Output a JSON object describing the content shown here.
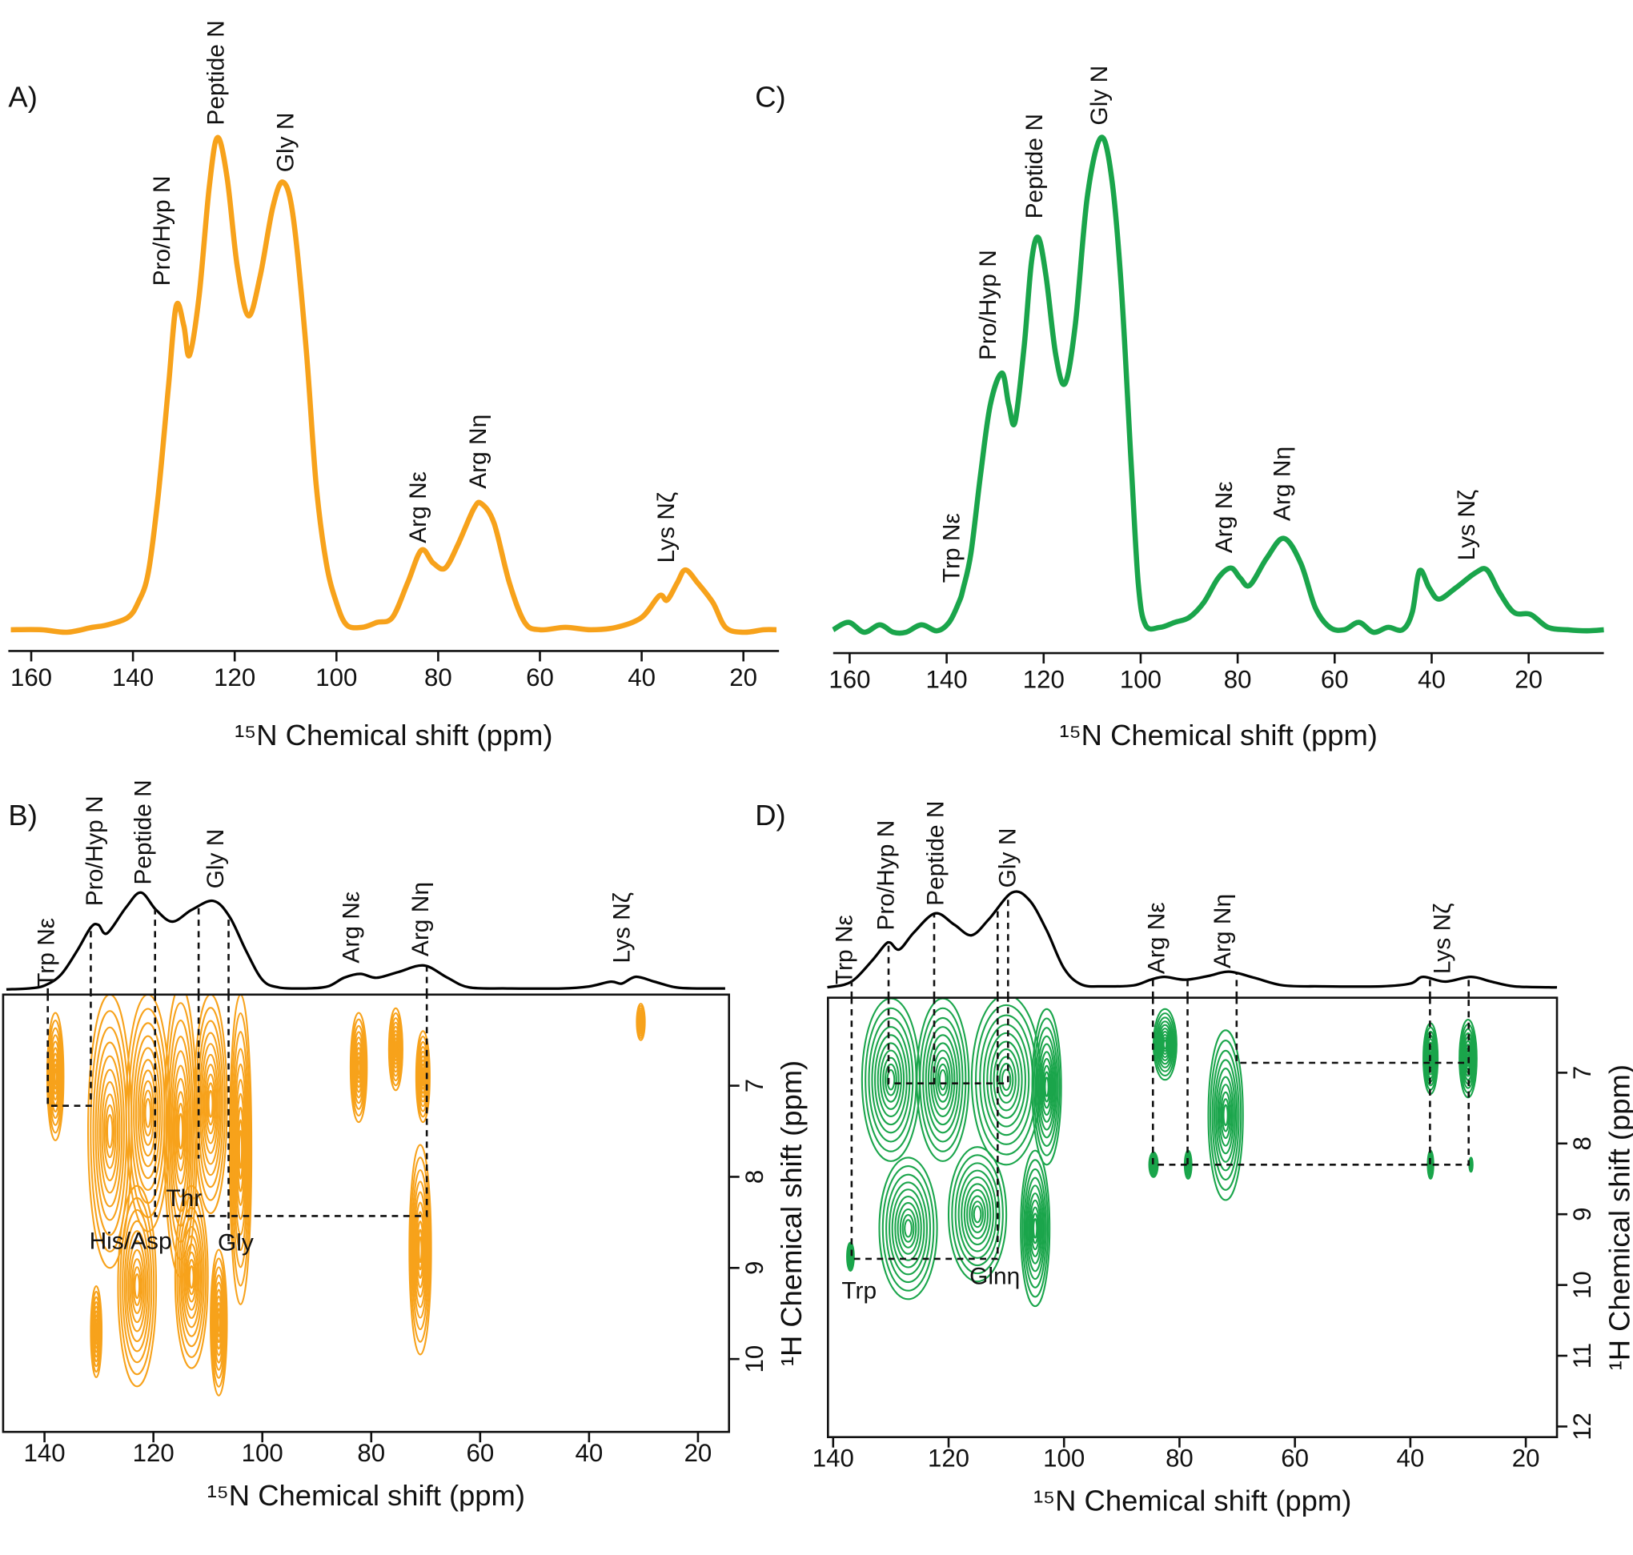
{
  "chart_data": [
    {
      "type": "line",
      "title": "A)",
      "x_label": "¹⁵N Chemical shift (ppm)",
      "xlim": [
        164.5,
        13
      ],
      "xticks": [
        160,
        140,
        120,
        100,
        80,
        60,
        40,
        20
      ],
      "ylim": [
        0,
        100
      ],
      "series": [
        {
          "color": "#f7a21b",
          "x": [
            164,
            158,
            153,
            148,
            145,
            141,
            139,
            137,
            135,
            133,
            131.5,
            130,
            128.9,
            127,
            125,
            123.4,
            121.5,
            119.5,
            117.3,
            115,
            112.5,
            110.5,
            108.5,
            106,
            104,
            102,
            100,
            98,
            95,
            92,
            89,
            86,
            83.3,
            81,
            78.6,
            76,
            73,
            71.5,
            69,
            66,
            63,
            60,
            55,
            50,
            45,
            40,
            36.5,
            35,
            33,
            31.4,
            29,
            26,
            23.5,
            20,
            16,
            13.5
          ],
          "values": [
            0.5,
            0.5,
            0,
            1,
            1.5,
            3,
            6,
            12,
            28,
            50,
            66,
            62,
            56,
            68,
            90,
            100,
            92,
            74,
            64,
            72,
            86,
            91,
            84,
            58,
            30,
            14,
            6,
            1.5,
            1,
            2,
            3,
            10,
            16.6,
            14,
            13,
            18,
            25,
            26,
            22,
            10,
            2,
            0.5,
            1,
            0.5,
            1,
            3,
            7.4,
            6.5,
            10,
            12.6,
            10,
            6,
            1,
            0,
            0.5,
            0.5
          ]
        }
      ],
      "annotations": [
        {
          "text": "Pro/Hyp N",
          "x": 134,
          "y": 70
        },
        {
          "text": "Peptide N",
          "x": 123.4,
          "y": 102.5
        },
        {
          "text": "Gly N",
          "x": 109.7,
          "y": 93
        },
        {
          "text": "Arg Nε",
          "x": 83.7,
          "y": 18
        },
        {
          "text": "Arg Nη",
          "x": 71.9,
          "y": 29
        },
        {
          "text": "Lys Nζ",
          "x": 34.9,
          "y": 14
        }
      ]
    },
    {
      "type": "contour",
      "title": "B)",
      "x_label": "¹⁵N Chemical shift (ppm)",
      "y_label": "¹H Chemical shift (ppm)",
      "xlim": [
        147.6,
        14.3
      ],
      "xticks": [
        140,
        120,
        100,
        80,
        60,
        40,
        20
      ],
      "ylim": [
        6,
        10.8
      ],
      "yticks": [
        7,
        8,
        9,
        10
      ],
      "color": "#f7a21b",
      "peaks": [
        {
          "x": 128,
          "y": 7.5,
          "x_width": 8,
          "y_width": 3.0
        },
        {
          "x": 121,
          "y": 7.3,
          "x_width": 8,
          "y_width": 2.6
        },
        {
          "x": 115,
          "y": 7.5,
          "x_width": 6,
          "y_width": 3.2
        },
        {
          "x": 109.5,
          "y": 7.2,
          "x_width": 6,
          "y_width": 2.4
        },
        {
          "x": 104,
          "y": 7.7,
          "x_width": 4,
          "y_width": 3.4
        },
        {
          "x": 138,
          "y": 6.9,
          "x_width": 3,
          "y_width": 1.4
        },
        {
          "x": 130.5,
          "y": 9.7,
          "x_width": 2,
          "y_width": 1.0
        },
        {
          "x": 123,
          "y": 9.2,
          "x_width": 7,
          "y_width": 2.2
        },
        {
          "x": 113,
          "y": 9.1,
          "x_width": 6,
          "y_width": 2.0
        },
        {
          "x": 108,
          "y": 9.6,
          "x_width": 3,
          "y_width": 1.6
        },
        {
          "x": 82.3,
          "y": 6.8,
          "x_width": 3,
          "y_width": 1.2
        },
        {
          "x": 75.5,
          "y": 6.6,
          "x_width": 2.5,
          "y_width": 0.9
        },
        {
          "x": 71,
          "y": 8.8,
          "x_width": 4,
          "y_width": 2.3
        },
        {
          "x": 70.5,
          "y": 6.9,
          "x_width": 2.5,
          "y_width": 1.0
        },
        {
          "x": 30.5,
          "y": 6.3,
          "x_width": 1.5,
          "y_width": 0.4
        }
      ],
      "guides": [
        {
          "x": [
            139.4,
            139.4,
            131.5,
            131.5
          ],
          "y": [
            6,
            7.22,
            7.22,
            6
          ]
        },
        {
          "x": [
            119.7,
            119.7,
            69.8,
            69.8
          ],
          "y": [
            6,
            8.43,
            8.43,
            6
          ]
        },
        {
          "x": [
            111.7,
            111.7
          ],
          "y": [
            6,
            7.8
          ]
        },
        {
          "x": [
            106.2,
            106.2
          ],
          "y": [
            6,
            8.74
          ]
        }
      ],
      "peak_labels": [
        {
          "text": "Thr",
          "x": 114.4,
          "y": 8.25
        },
        {
          "text": "His/Asp",
          "x": 124.2,
          "y": 8.72
        },
        {
          "text": "Gly",
          "x": 104.9,
          "y": 8.74
        }
      ],
      "projection": {
        "color": "#000000",
        "ylim": [
          0,
          100
        ],
        "x": [
          147,
          143,
          140,
          137,
          134,
          131.5,
          130.1,
          128.5,
          125,
          122.3,
          119.5,
          116.5,
          113,
          109,
          106,
          103,
          100,
          97,
          92,
          88,
          85,
          82,
          79,
          75,
          70.3,
          66,
          62,
          55,
          45,
          40,
          36,
          34,
          31.4,
          28,
          24,
          20,
          15
        ],
        "values": [
          0,
          1,
          4,
          15,
          40,
          64,
          66.7,
          58,
          85,
          100,
          82,
          70,
          82,
          91.4,
          75,
          40,
          10,
          2,
          1,
          3,
          12,
          16,
          12,
          18,
          24.7,
          12,
          2,
          1,
          1,
          3,
          8,
          6,
          13,
          8,
          2,
          1,
          1
        ],
        "annotations": [
          {
            "text": "Trp Nε",
            "x": 139.4,
            "y": 2
          },
          {
            "text": "Pro/Hyp N",
            "x": 130.5,
            "y": 86
          },
          {
            "text": "Peptide N",
            "x": 121.6,
            "y": 108
          },
          {
            "text": "Gly N",
            "x": 108.3,
            "y": 104
          },
          {
            "text": "Arg Nε",
            "x": 83.4,
            "y": 27
          },
          {
            "text": "Arg Nη",
            "x": 70.7,
            "y": 34
          },
          {
            "text": "Lys Nζ",
            "x": 33.7,
            "y": 27
          }
        ]
      }
    },
    {
      "type": "line",
      "title": "C)",
      "x_label": "¹⁵N Chemical shift (ppm)",
      "xlim": [
        163.4,
        4.5
      ],
      "xticks": [
        160,
        140,
        120,
        100,
        80,
        60,
        40,
        20
      ],
      "ylim": [
        0,
        100
      ],
      "series": [
        {
          "color": "#1aa54b",
          "x": [
            163.4,
            160.2,
            157,
            153.8,
            151,
            148.4,
            145.2,
            142,
            139.5,
            137.5,
            136.6,
            135,
            133,
            131,
            128.6,
            127.2,
            125.9,
            124,
            122.5,
            121.1,
            119.5,
            117.5,
            115.6,
            113.5,
            111,
            108.2,
            106,
            104,
            102,
            100.5,
            99,
            96,
            93,
            90,
            87,
            84,
            81.4,
            79.5,
            77.5,
            74,
            70.5,
            67,
            64,
            61,
            58,
            55,
            52,
            49,
            46,
            44,
            42.5,
            40.5,
            38.5,
            35,
            31,
            28.6,
            26,
            23,
            19.6,
            16,
            12,
            8,
            4.5
          ],
          "values": [
            0.5,
            2,
            0,
            1.5,
            0,
            0,
            1.5,
            0.3,
            2,
            6,
            8.8,
            16,
            32,
            46,
            52.4,
            46,
            42.5,
            58,
            75,
            79.8,
            72,
            56,
            50.3,
            62,
            88,
            100,
            92,
            70,
            35,
            10,
            1.5,
            1,
            2,
            3,
            6,
            11,
            13,
            11,
            9.5,
            15,
            19,
            14,
            5,
            1,
            0.5,
            2,
            0,
            1,
            0.5,
            4,
            12.4,
            9,
            6.7,
            9,
            12,
            12.6,
            8,
            4,
            3.6,
            1,
            0.5,
            0.3,
            0.5
          ]
        }
      ],
      "annotations": [
        {
          "text": "Trp Nε",
          "x": 138.7,
          "y": 10
        },
        {
          "text": "Pro/Hyp N",
          "x": 131.2,
          "y": 55
        },
        {
          "text": "Peptide N",
          "x": 121.6,
          "y": 83.6
        },
        {
          "text": "Gly N",
          "x": 108.2,
          "y": 102.5
        },
        {
          "text": "Arg Nε",
          "x": 82.5,
          "y": 16
        },
        {
          "text": "Arg Nη",
          "x": 70.5,
          "y": 22.5
        },
        {
          "text": "Lys Nζ",
          "x": 32.5,
          "y": 14.5
        }
      ]
    },
    {
      "type": "contour",
      "title": "D)",
      "x_label": "¹⁵N Chemical shift (ppm)",
      "y_label": "¹H Chemical shift (ppm)",
      "xlim": [
        140.9,
        14.6
      ],
      "xticks": [
        140,
        120,
        100,
        80,
        60,
        40,
        20
      ],
      "ylim": [
        5.94,
        12.15
      ],
      "yticks": [
        7,
        8,
        9,
        10,
        11,
        12
      ],
      "color": "#1aa54b",
      "peaks": [
        {
          "x": 130,
          "y": 7.1,
          "x_width": 10,
          "y_width": 2.3
        },
        {
          "x": 121,
          "y": 7.1,
          "x_width": 9,
          "y_width": 2.3
        },
        {
          "x": 110,
          "y": 7.1,
          "x_width": 12,
          "y_width": 2.4
        },
        {
          "x": 103,
          "y": 7.2,
          "x_width": 5,
          "y_width": 2.2
        },
        {
          "x": 127,
          "y": 9.2,
          "x_width": 10,
          "y_width": 2.0
        },
        {
          "x": 115,
          "y": 9.0,
          "x_width": 10,
          "y_width": 1.9
        },
        {
          "x": 105,
          "y": 9.2,
          "x_width": 5,
          "y_width": 2.2
        },
        {
          "x": 137,
          "y": 9.6,
          "x_width": 1.2,
          "y_width": 0.4
        },
        {
          "x": 82.5,
          "y": 6.6,
          "x_width": 4,
          "y_width": 1.0
        },
        {
          "x": 84.5,
          "y": 8.3,
          "x_width": 1.5,
          "y_width": 0.35
        },
        {
          "x": 78.5,
          "y": 8.3,
          "x_width": 1.2,
          "y_width": 0.4
        },
        {
          "x": 72,
          "y": 7.6,
          "x_width": 6,
          "y_width": 2.4
        },
        {
          "x": 36.5,
          "y": 6.8,
          "x_width": 2.5,
          "y_width": 1.0
        },
        {
          "x": 30,
          "y": 6.8,
          "x_width": 3,
          "y_width": 1.1
        },
        {
          "x": 36.5,
          "y": 8.3,
          "x_width": 1,
          "y_width": 0.4
        },
        {
          "x": 29.5,
          "y": 8.3,
          "x_width": 0.6,
          "y_width": 0.2
        }
      ],
      "guides": [
        {
          "x": [
            136.8,
            136.8,
            111.5,
            111.5
          ],
          "y": [
            5.94,
            9.63,
            9.63,
            5.94
          ]
        },
        {
          "x": [
            130.4,
            130.4,
            109.7,
            109.7
          ],
          "y": [
            5.94,
            7.15,
            7.15,
            5.94
          ]
        },
        {
          "x": [
            122.5,
            122.5
          ],
          "y": [
            5.94,
            7.15
          ]
        },
        {
          "x": [
            84.6,
            84.6,
            29.9,
            29.9
          ],
          "y": [
            5.94,
            8.3,
            8.3,
            5.94
          ]
        },
        {
          "x": [
            78.6,
            78.6
          ],
          "y": [
            5.94,
            8.3
          ]
        },
        {
          "x": [
            70.1,
            70.1,
            29.9
          ],
          "y": [
            5.94,
            6.86,
            6.86
          ]
        },
        {
          "x": [
            36.6,
            36.6
          ],
          "y": [
            5.94,
            8.3
          ]
        }
      ],
      "peak_labels": [
        {
          "text": "Trp",
          "x": 135.5,
          "y": 10.1
        },
        {
          "text": "Glnη",
          "x": 112,
          "y": 9.9
        }
      ],
      "projection": {
        "color": "#000000",
        "ylim": [
          0,
          100
        ],
        "x": [
          141,
          138,
          136,
          133,
          131,
          130.1,
          128.5,
          126,
          122.3,
          119,
          116,
          113,
          109,
          106,
          103,
          100,
          97,
          93,
          88,
          85,
          82.6,
          79,
          75,
          71.4,
          67,
          62,
          55,
          45,
          40,
          37.8,
          34,
          29.5,
          26,
          22,
          16,
          14.6
        ],
        "values": [
          0,
          3,
          10,
          30,
          45,
          47,
          40,
          58,
          78,
          66,
          55,
          72,
          100,
          92,
          60,
          20,
          3,
          1,
          2,
          8,
          11,
          8,
          12,
          16.5,
          10,
          2,
          1,
          1,
          4,
          11,
          6,
          11,
          6,
          1,
          0,
          0
        ],
        "annotations": [
          {
            "text": "Trp Nε",
            "x": 137.8,
            "y": 3
          },
          {
            "text": "Pro/Hyp N",
            "x": 130.6,
            "y": 60
          },
          {
            "text": "Peptide N",
            "x": 122,
            "y": 86
          },
          {
            "text": "Gly N",
            "x": 109.5,
            "y": 105
          },
          {
            "text": "Arg Nε",
            "x": 83.7,
            "y": 14
          },
          {
            "text": "Arg Nη",
            "x": 72.3,
            "y": 20
          },
          {
            "text": "Lys Nζ",
            "x": 34.2,
            "y": 14
          }
        ]
      }
    }
  ]
}
